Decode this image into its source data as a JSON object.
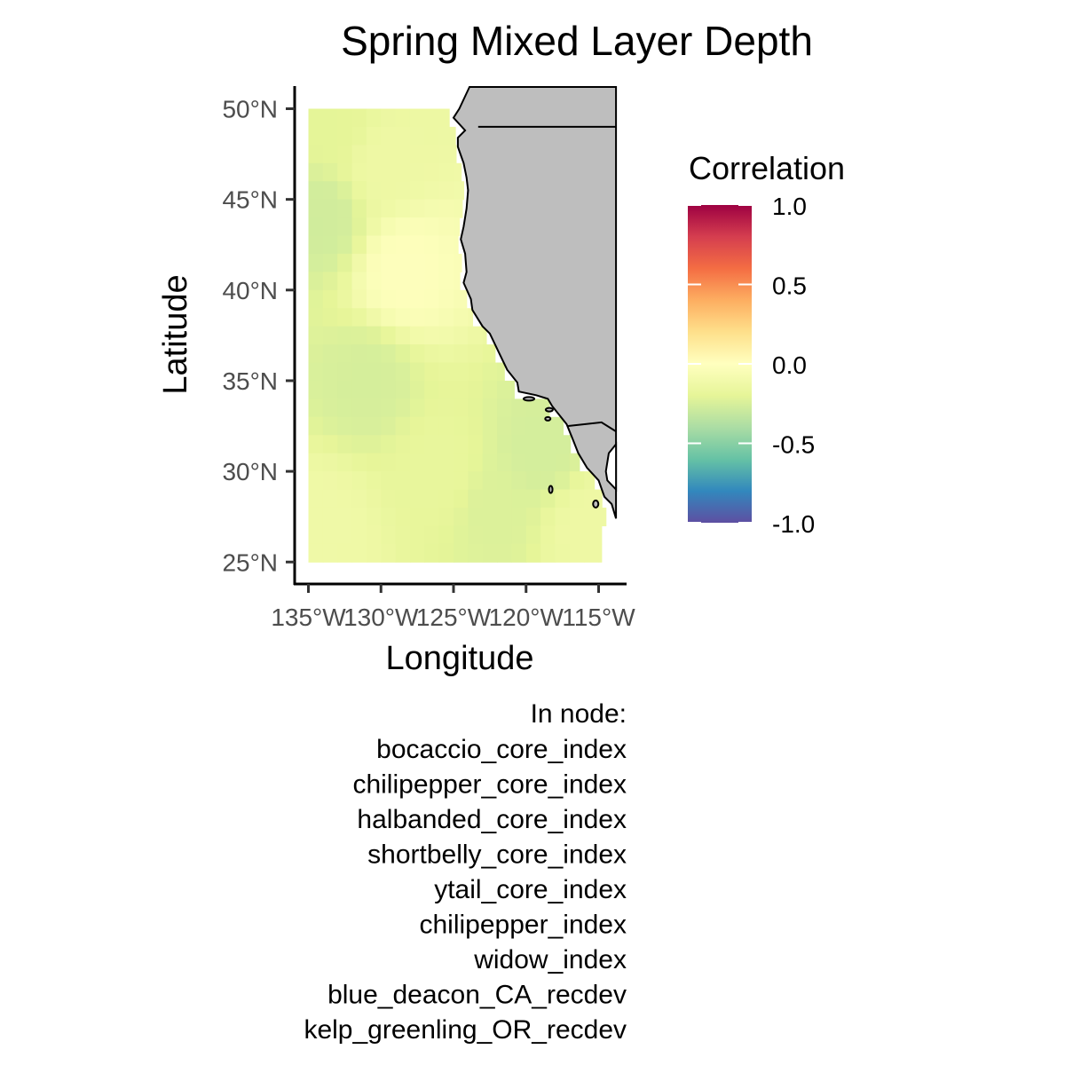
{
  "title": "Spring Mixed Layer Depth",
  "x_axis": {
    "label": "Longitude",
    "ticks": [
      {
        "value": -135,
        "label": "135°W"
      },
      {
        "value": -130,
        "label": "130°W"
      },
      {
        "value": -125,
        "label": "125°W"
      },
      {
        "value": -120,
        "label": "120°W"
      },
      {
        "value": -115,
        "label": "115°W"
      }
    ]
  },
  "y_axis": {
    "label": "Latitude",
    "ticks": [
      {
        "value": 25,
        "label": "25°N"
      },
      {
        "value": 30,
        "label": "30°N"
      },
      {
        "value": 35,
        "label": "35°N"
      },
      {
        "value": 40,
        "label": "40°N"
      },
      {
        "value": 45,
        "label": "45°N"
      },
      {
        "value": 50,
        "label": "50°N"
      }
    ]
  },
  "extent": {
    "lon": [
      -136,
      -113.8
    ],
    "lat": [
      23.8,
      51.2
    ]
  },
  "land_color": "#bebebe",
  "legend": {
    "title": "Correlation",
    "ticks": [
      {
        "value": 1.0,
        "label": "1.0"
      },
      {
        "value": 0.5,
        "label": "0.5"
      },
      {
        "value": 0.0,
        "label": "0.0"
      },
      {
        "value": -0.5,
        "label": "-0.5"
      },
      {
        "value": -1.0,
        "label": "-1.0"
      }
    ],
    "limits": [
      -1,
      1
    ],
    "palette": "Spectral",
    "colors": [
      "#5e4fa2",
      "#3288bd",
      "#66c2a5",
      "#abdda4",
      "#e6f598",
      "#ffffbf",
      "#fee08b",
      "#fdae61",
      "#f46d43",
      "#d53e4f",
      "#9e0142"
    ]
  },
  "caption": {
    "header": "In node:",
    "items": [
      "bocaccio_core_index",
      "chilipepper_core_index",
      "halbanded_core_index",
      "shortbelly_core_index",
      "ytail_core_index",
      "chilipepper_index",
      "widow_index",
      "blue_deacon_CA_recdev",
      "kelp_greenling_OR_recdev"
    ]
  },
  "chart_data": {
    "type": "heatmap",
    "value_label": "Correlation",
    "x_range": [
      -135,
      -114.5
    ],
    "y_range": [
      25.25,
      50
    ],
    "correlation_field_approx": {
      "description_omitted": true,
      "anchors": [
        {
          "lon": -134,
          "lat": 44,
          "value": -0.35
        },
        {
          "lon": -133,
          "lat": 49,
          "value": -0.22
        },
        {
          "lon": -130,
          "lat": 47,
          "value": -0.1
        },
        {
          "lon": -128.5,
          "lat": 41,
          "value": 0.12
        },
        {
          "lon": -131,
          "lat": 35,
          "value": -0.32
        },
        {
          "lon": -126,
          "lat": 30,
          "value": -0.18
        },
        {
          "lon": -122,
          "lat": 28,
          "value": -0.28
        },
        {
          "lon": -119,
          "lat": 31,
          "value": -0.33
        },
        {
          "lon": -116,
          "lat": 27,
          "value": -0.1
        },
        {
          "lon": -134,
          "lat": 27,
          "value": -0.08
        }
      ],
      "baseline": -0.18
    }
  }
}
